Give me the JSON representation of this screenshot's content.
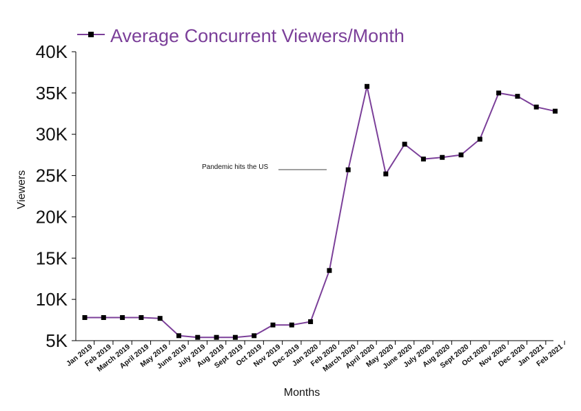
{
  "chart_data": {
    "type": "line",
    "title": "",
    "xlabel": "Months",
    "ylabel": "Viewers",
    "ylim": [
      5000,
      40000
    ],
    "y_ticks": [
      {
        "value": 5000,
        "label": "5K"
      },
      {
        "value": 10000,
        "label": "10K"
      },
      {
        "value": 15000,
        "label": "15K"
      },
      {
        "value": 20000,
        "label": "20K"
      },
      {
        "value": 25000,
        "label": "25K"
      },
      {
        "value": 30000,
        "label": "30K"
      },
      {
        "value": 35000,
        "label": "35K"
      },
      {
        "value": 40000,
        "label": "40K"
      }
    ],
    "categories": [
      "Jan 2019",
      "Feb 2019",
      "March 2019",
      "April 2019",
      "May 2019",
      "June 2019",
      "July 2019",
      "Aug 2019",
      "Sept 2019",
      "Oct 2019",
      "Nov 2019",
      "Dec 2019",
      "Jan 2020",
      "Feb 2020",
      "March 2020",
      "April 2020",
      "May 2020",
      "June 2020",
      "July 2020",
      "Aug 2020",
      "Sept 2020",
      "Oct 2020",
      "Nov 2020",
      "Dec 2020",
      "Jan 2021",
      "Feb 2021"
    ],
    "series": [
      {
        "name": "Average Concurrent Viewers/Month",
        "color": "#7b3f99",
        "marker_color": "#000000",
        "values": [
          7800,
          7800,
          7800,
          7800,
          7700,
          5600,
          5400,
          5400,
          5400,
          5600,
          6900,
          6900,
          7300,
          13500,
          25700,
          35800,
          25200,
          28800,
          27000,
          27200,
          27500,
          29400,
          35000,
          34600,
          33300,
          32800
        ]
      }
    ],
    "annotations": [
      {
        "text": "Pandemic hits the US",
        "category": "March 2020",
        "value": 25700
      }
    ],
    "grid": false,
    "legend_position": "top-left"
  }
}
